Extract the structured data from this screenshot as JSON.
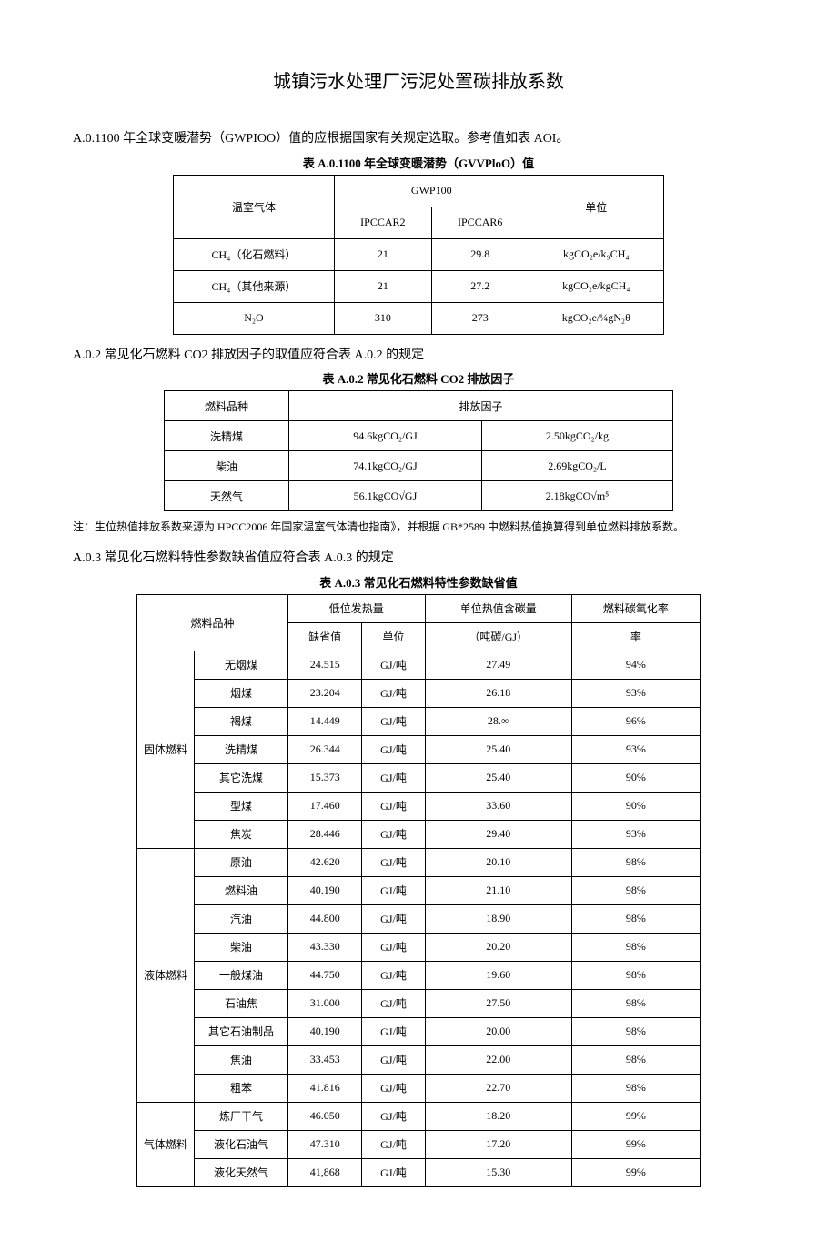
{
  "title": "城镇污水处理厂污泥处置碳排放系数",
  "sectionA01": {
    "text": "A.0.1100 年全球变暖潜势（GWPIOO）值的应根据国家有关规定选取。参考值如表 AOI。",
    "caption": "表 A.0.1100 年全球变暖潜势（GVVPloO）值",
    "h_ghg": "温室气体",
    "h_gwp": "GWP100",
    "h_ar2": "IPCCAR2",
    "h_ar6": "IPCCAR6",
    "h_unit": "单位",
    "rows": [
      {
        "gas": "CH₄（化石燃料）",
        "ar2": "21",
        "ar6": "29.8",
        "unit": "kgCO₂e/k₉CH₄"
      },
      {
        "gas": "CH₄（其他来源）",
        "ar2": "21",
        "ar6": "27.2",
        "unit": "kgCO₂e/kgCH₄"
      },
      {
        "gas": "N₂O",
        "ar2": "310",
        "ar6": "273",
        "unit": "kgCO₂e/¼gN₂θ"
      }
    ]
  },
  "sectionA02": {
    "text": "A.0.2 常见化石燃料 CO2 排放因子的取值应符合表 A.0.2 的规定",
    "caption": "表 A.0.2 常见化石燃料 CO2 排放因子",
    "h_fuel": "燃料品种",
    "h_factor": "排放因子",
    "rows": [
      {
        "fuel": "洗精煤",
        "f1": "94.6kgCO₂/GJ",
        "f2": "2.50kgCO₂/kg"
      },
      {
        "fuel": "柴油",
        "f1": "74.1kgCO₂/GJ",
        "f2": "2.69kgCO₂/L"
      },
      {
        "fuel": "天然气",
        "f1": "56.1kgCO√GJ",
        "f2": "2.18kgCO√m⁵"
      }
    ],
    "note": "注：生位热值排放系数来源为 HPCC2006 年国家温室气体清也指南》，并根据 GB*2589 中燃料热值换算得到单位燃料排放系数。"
  },
  "sectionA03": {
    "text": "A.0.3 常见化石燃料特性参数缺省值应符合表 A.0.3 的规定",
    "caption": "表 A.0.3 常见化石燃料特性参数缺省值",
    "h_fuel": "燃料品种",
    "h_ncv": "低位发热量",
    "h_ncv_def": "缺省值",
    "h_ncv_unit": "单位",
    "h_carbon": "单位热值含碳量",
    "h_carbon_sub": "（吨碳/GJ）",
    "h_oxid": "燃料碳氧化率",
    "groups": [
      {
        "name": "固体燃料",
        "items": [
          {
            "n": "无烟煤",
            "v": "24.515",
            "u": "GJ/吨",
            "c": "27.49",
            "o": "94%"
          },
          {
            "n": "烟煤",
            "v": "23.204",
            "u": "GJ/吨",
            "c": "26.18",
            "o": "93%"
          },
          {
            "n": "褐煤",
            "v": "14.449",
            "u": "GJ/吨",
            "c": "28.∞",
            "o": "96%"
          },
          {
            "n": "洗精煤",
            "v": "26.344",
            "u": "GJ/吨",
            "c": "25.40",
            "o": "93%"
          },
          {
            "n": "其它洗煤",
            "v": "15.373",
            "u": "GJ/吨",
            "c": "25.40",
            "o": "90%"
          },
          {
            "n": "型煤",
            "v": "17.460",
            "u": "GJ/吨",
            "c": "33.60",
            "o": "90%"
          },
          {
            "n": "焦炭",
            "v": "28.446",
            "u": "GJ/吨",
            "c": "29.40",
            "o": "93%"
          }
        ]
      },
      {
        "name": "液体燃料",
        "items": [
          {
            "n": "原油",
            "v": "42.620",
            "u": "GJ/吨",
            "c": "20.10",
            "o": "98%"
          },
          {
            "n": "燃料油",
            "v": "40.190",
            "u": "GJ/吨",
            "c": "21.10",
            "o": "98%"
          },
          {
            "n": "汽油",
            "v": "44.800",
            "u": "GJ/吨",
            "c": "18.90",
            "o": "98%"
          },
          {
            "n": "柴油",
            "v": "43.330",
            "u": "GJ/吨",
            "c": "20.20",
            "o": "98%"
          },
          {
            "n": "一般煤油",
            "v": "44.750",
            "u": "GJ/吨",
            "c": "19.60",
            "o": "98%"
          },
          {
            "n": "石油焦",
            "v": "31.000",
            "u": "GJ/吨",
            "c": "27.50",
            "o": "98%"
          },
          {
            "n": "其它石油制品",
            "v": "40.190",
            "u": "GJ/吨",
            "c": "20.00",
            "o": "98%"
          },
          {
            "n": "焦油",
            "v": "33.453",
            "u": "GJ/吨",
            "c": "22.00",
            "o": "98%"
          },
          {
            "n": "粗苯",
            "v": "41.816",
            "u": "GJ/吨",
            "c": "22.70",
            "o": "98%"
          }
        ]
      },
      {
        "name": "气体燃料",
        "items": [
          {
            "n": "炼厂干气",
            "v": "46.050",
            "u": "GJ/吨",
            "c": "18.20",
            "o": "99%"
          },
          {
            "n": "液化石油气",
            "v": "47.310",
            "u": "GJ/吨",
            "c": "17.20",
            "o": "99%"
          },
          {
            "n": "液化天然气",
            "v": "41,868",
            "u": "GJ/吨",
            "c": "15.30",
            "o": "99%"
          }
        ]
      }
    ]
  }
}
